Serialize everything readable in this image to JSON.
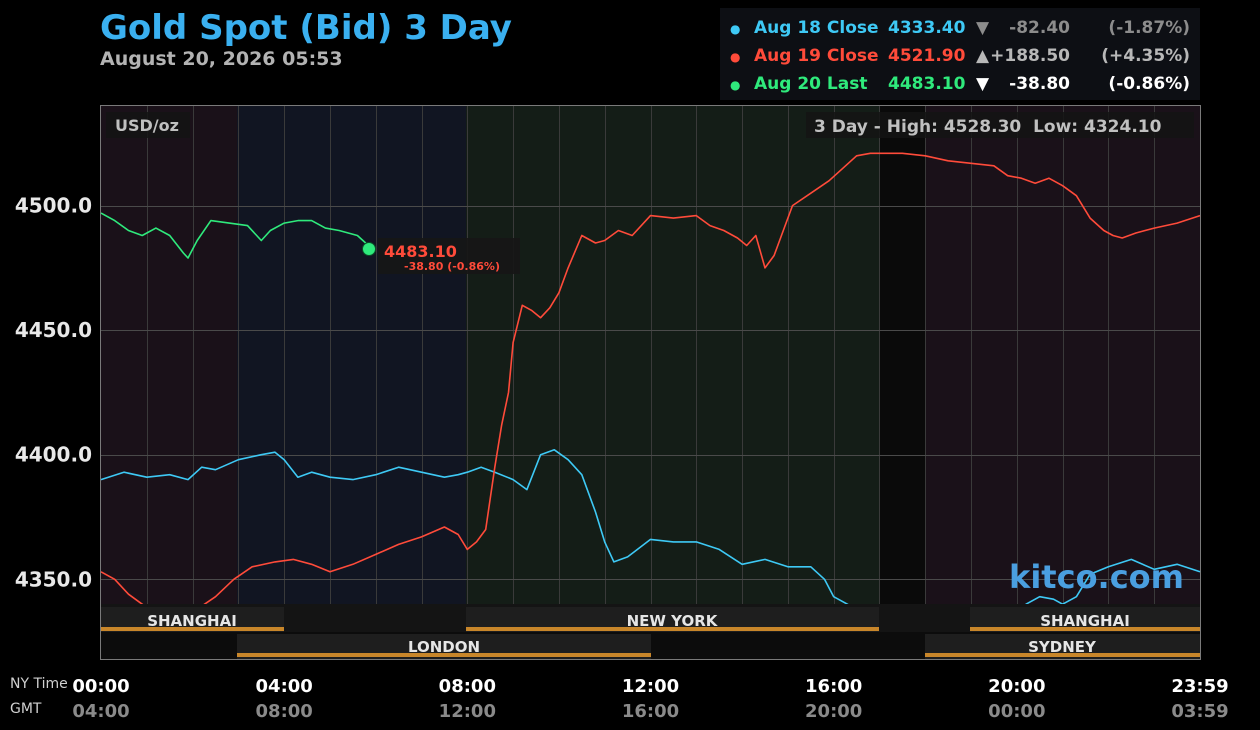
{
  "header": {
    "title": "Gold Spot (Bid) 3 Day",
    "timestamp": "August 20, 2026 05:53"
  },
  "legend": [
    {
      "label": "Aug 18 Close",
      "price": "4333.40",
      "arrow": "▼",
      "change": "-82.40",
      "pct": "(-1.87%)",
      "color": "#3ec9f5",
      "text_color": "#3ec9f5",
      "change_color": "#8c8c8c"
    },
    {
      "label": "Aug 19 Close",
      "price": "4521.90",
      "arrow": "▲",
      "change": "+188.50",
      "pct": "(+4.35%)",
      "color": "#ff4b3a",
      "text_color": "#ff4b3a",
      "change_color": "#b8b8b8"
    },
    {
      "label": "Aug 20 Last",
      "price": "4483.10",
      "arrow": "▼",
      "change": "-38.80",
      "pct": "(-0.86%)",
      "color": "#2fea7c",
      "text_color": "#2fea7c",
      "change_color": "#ffffff"
    }
  ],
  "chart_labels": {
    "unit": "USD/oz",
    "range": "3 Day - High: 4528.30  Low: 4324.10",
    "watermark": "kitco.com",
    "last_price": "4483.10",
    "last_change": "-38.80 (-0.86%)"
  },
  "sessions": {
    "row1": [
      "SHANGHAI",
      "NEW YORK",
      "SHANGHAI"
    ],
    "row2": [
      "LONDON",
      "SYDNEY"
    ]
  },
  "time_axis": {
    "ny_label": "NY Time",
    "gmt_label": "GMT",
    "ny": [
      "00:00",
      "04:00",
      "08:00",
      "12:00",
      "16:00",
      "20:00",
      "23:59"
    ],
    "gmt": [
      "04:00",
      "08:00",
      "12:00",
      "16:00",
      "20:00",
      "00:00",
      "03:59"
    ]
  },
  "colors": {
    "aug18": "#3ec9f5",
    "aug19": "#ff4b3a",
    "aug20": "#2fea7c",
    "session_bar": "#c8862a",
    "title": "#3ab0f0",
    "watermark": "#4a9fe0"
  },
  "chart_data": {
    "type": "line",
    "xlabel": "",
    "ylabel": "USD/oz",
    "x_unit": "NY time (hours)",
    "xlim": [
      0,
      24
    ],
    "ylim": [
      4318,
      4540
    ],
    "yticks": [
      4350.0,
      4400.0,
      4450.0,
      4500.0
    ],
    "ytick_labels": [
      "4350.0",
      "4400.0",
      "4450.0",
      "4500.0"
    ],
    "grid": true,
    "series": [
      {
        "name": "Aug 18 Close",
        "x": [
          0,
          0.5,
          1,
          1.5,
          1.9,
          2.2,
          2.5,
          3,
          3.5,
          3.8,
          4,
          4.3,
          4.6,
          5,
          5.5,
          6,
          6.5,
          7,
          7.5,
          7.8,
          8,
          8.3,
          8.6,
          9,
          9.3,
          9.6,
          9.9,
          10.2,
          10.5,
          10.8,
          11,
          11.2,
          11.5,
          12,
          12.5,
          13,
          13.5,
          14,
          14.5,
          15,
          15.5,
          15.8,
          16,
          16.3,
          16.6,
          17,
          17.5,
          18,
          18.3,
          18.6,
          19,
          19.5,
          19.8,
          20.2,
          20.5,
          20.8,
          21,
          21.3,
          21.6,
          22,
          22.5,
          23,
          23.5,
          24
        ],
        "values": [
          4390,
          4393,
          4391,
          4392,
          4390,
          4395,
          4394,
          4398,
          4400,
          4401,
          4398,
          4391,
          4393,
          4391,
          4390,
          4392,
          4395,
          4393,
          4391,
          4392,
          4393,
          4395,
          4393,
          4390,
          4386,
          4400,
          4402,
          4398,
          4392,
          4377,
          4365,
          4357,
          4359,
          4366,
          4365,
          4365,
          4362,
          4356,
          4358,
          4355,
          4355,
          4350,
          4343,
          4340,
          4336,
          4334,
          4334,
          4334,
          4338,
          4336,
          4335,
          4332,
          4331,
          4340,
          4343,
          4342,
          4340,
          4343,
          4352,
          4355,
          4358,
          4354,
          4356,
          4353
        ]
      },
      {
        "name": "Aug 19 Close",
        "x": [
          0,
          0.3,
          0.6,
          0.9,
          1.2,
          1.5,
          1.8,
          2.1,
          2.5,
          2.9,
          3.3,
          3.8,
          4.2,
          4.6,
          5,
          5.5,
          6,
          6.5,
          7,
          7.5,
          7.8,
          8,
          8.2,
          8.4,
          8.6,
          8.75,
          8.9,
          9,
          9.2,
          9.4,
          9.6,
          9.8,
          10,
          10.2,
          10.5,
          10.8,
          11,
          11.3,
          11.6,
          12,
          12.5,
          13,
          13.3,
          13.6,
          13.9,
          14.1,
          14.3,
          14.5,
          14.7,
          14.9,
          15.1,
          15.5,
          15.9,
          16.2,
          16.5,
          16.8,
          17,
          17.5,
          18,
          18.5,
          19,
          19.5,
          19.8,
          20.1,
          20.4,
          20.7,
          21,
          21.3,
          21.6,
          21.9,
          22.1,
          22.3,
          22.6,
          23,
          23.5,
          24
        ],
        "values": [
          4353,
          4350,
          4344,
          4340,
          4336,
          4336,
          4337,
          4338,
          4343,
          4350,
          4355,
          4357,
          4358,
          4356,
          4353,
          4356,
          4360,
          4364,
          4367,
          4371,
          4368,
          4362,
          4365,
          4370,
          4395,
          4412,
          4425,
          4445,
          4460,
          4458,
          4455,
          4459,
          4465,
          4475,
          4488,
          4485,
          4486,
          4490,
          4488,
          4496,
          4495,
          4496,
          4492,
          4490,
          4487,
          4484,
          4488,
          4475,
          4480,
          4490,
          4500,
          4505,
          4510,
          4515,
          4520,
          4521,
          4521,
          4521,
          4520,
          4518,
          4517,
          4516,
          4512,
          4511,
          4509,
          4511,
          4508,
          4504,
          4495,
          4490,
          4488,
          4487,
          4489,
          4491,
          4493,
          4496
        ]
      },
      {
        "name": "Aug 20 Last",
        "x": [
          0,
          0.3,
          0.6,
          0.9,
          1.2,
          1.5,
          1.8,
          1.9,
          2.1,
          2.4,
          2.8,
          3.2,
          3.5,
          3.7,
          4,
          4.3,
          4.6,
          4.9,
          5.2,
          5.6,
          5.9
        ],
        "values": [
          4497,
          4494,
          4490,
          4488,
          4491,
          4488,
          4481,
          4479,
          4486,
          4494,
          4493,
          4492,
          4486,
          4490,
          4493,
          4494,
          4494,
          4491,
          4490,
          4488,
          4483
        ]
      }
    ],
    "annotations": [
      "4483.10",
      "-38.80 (-0.86%)"
    ]
  }
}
